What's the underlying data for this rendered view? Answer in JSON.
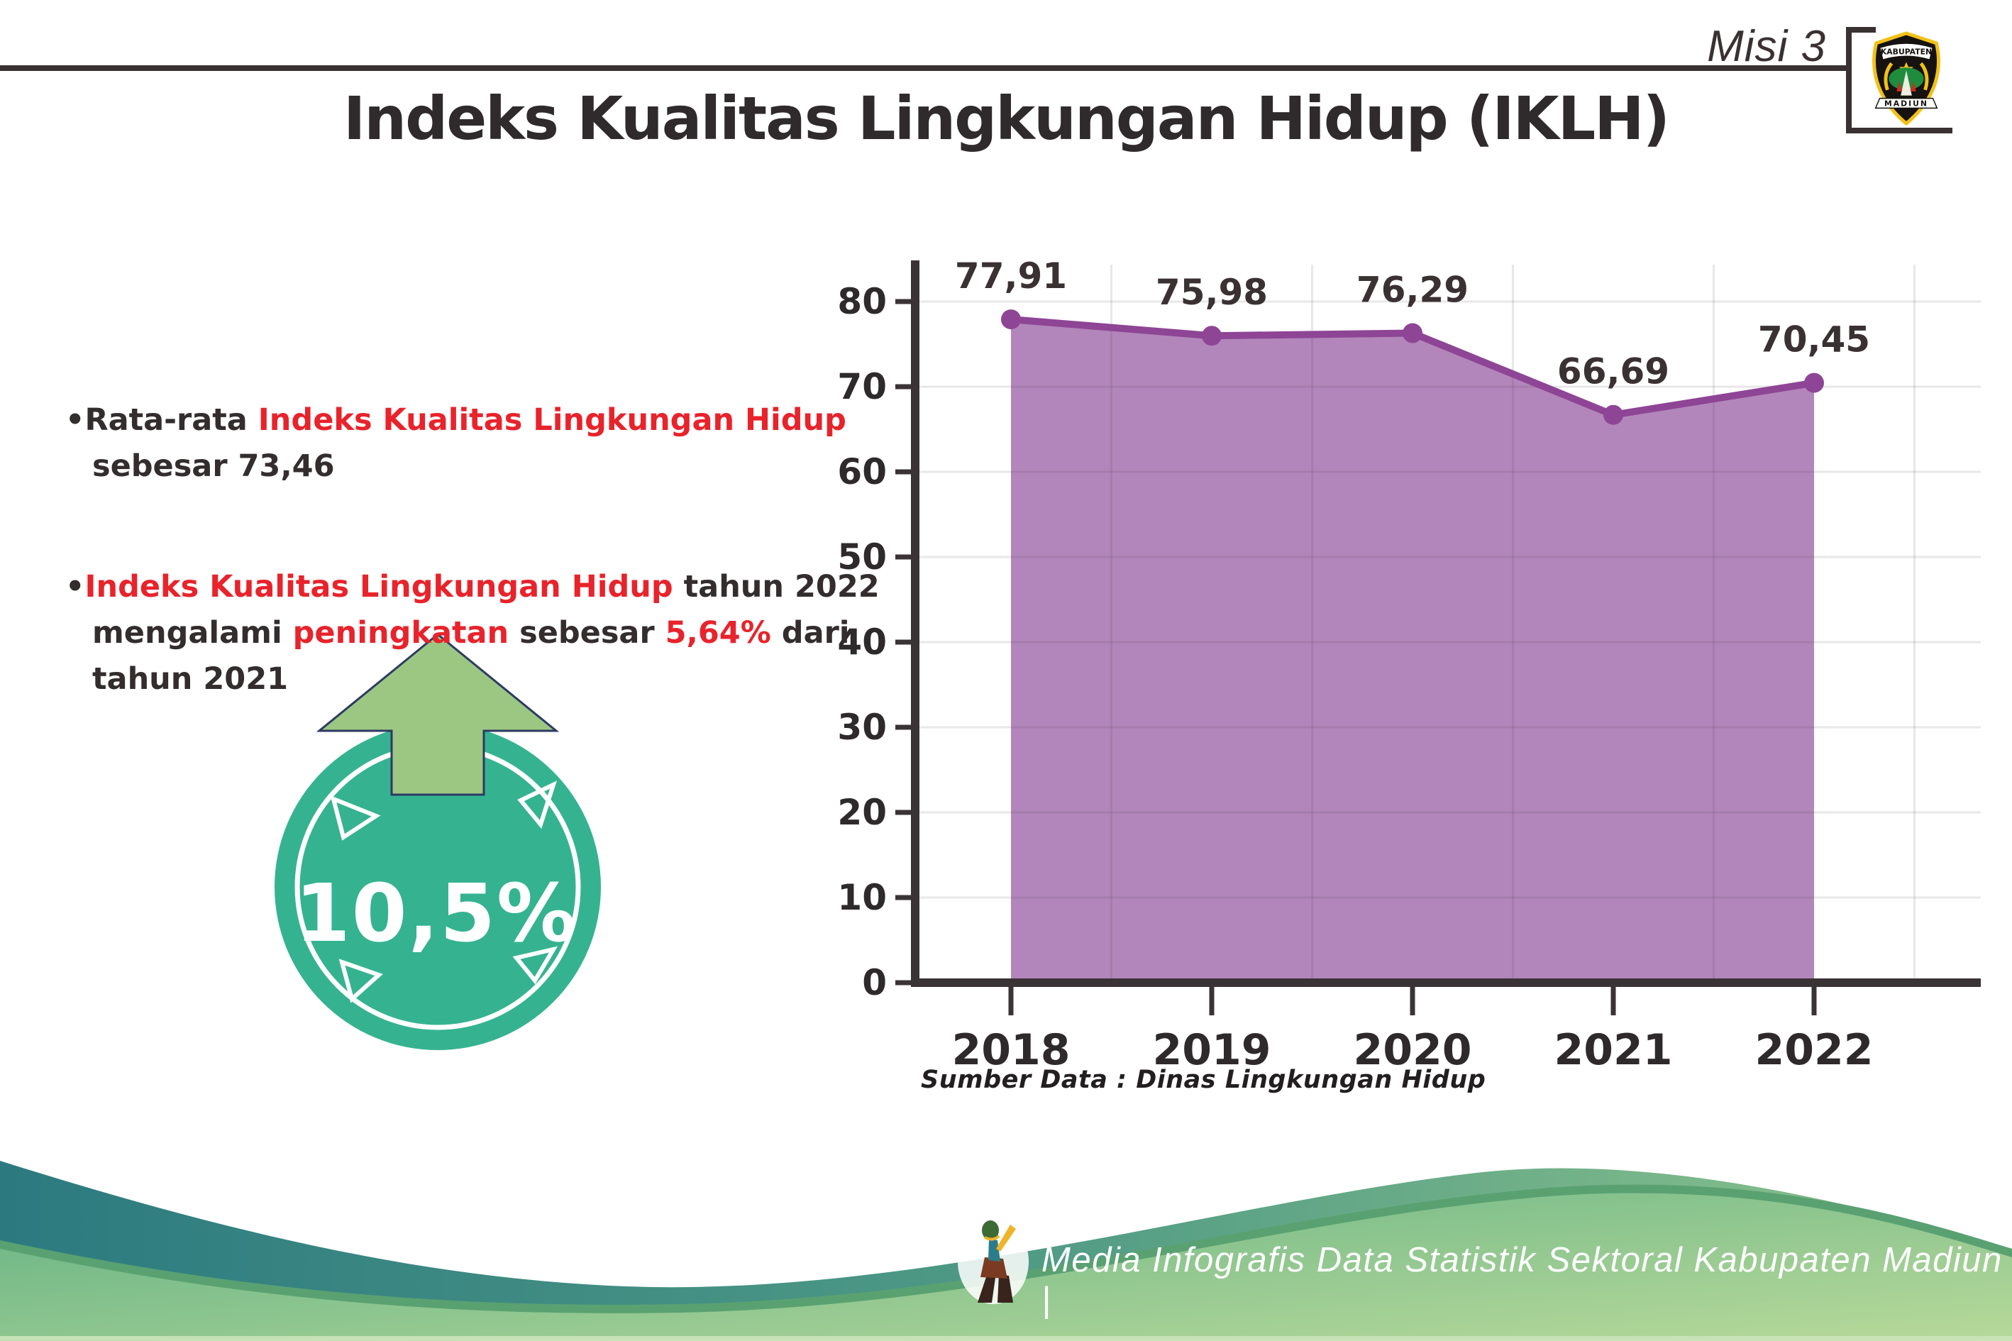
{
  "header": {
    "misi": "Misi 3",
    "logo": {
      "top": "KABUPATEN",
      "bottom": "MADIUN"
    }
  },
  "title": "Indeks Kualitas Lingkungan Hidup (IKLH)",
  "bullets": {
    "b1": {
      "marker": "•",
      "segments": [
        {
          "t": "Rata-rata ",
          "c": "dark"
        },
        {
          "t": "Indeks Kualitas Lingkungan Hidup",
          "c": "red"
        },
        {
          "br": true
        },
        {
          "t": "sebesar 73,46",
          "c": "dark"
        }
      ]
    },
    "b2": {
      "marker": "•",
      "segments": [
        {
          "t": "Indeks Kualitas Lingkungan Hidup",
          "c": "red"
        },
        {
          "t": " tahun 2022",
          "c": "dark"
        },
        {
          "br": true
        },
        {
          "t": "mengalami ",
          "c": "dark"
        },
        {
          "t": "peningkatan",
          "c": "red"
        },
        {
          "t": " sebesar ",
          "c": "dark"
        },
        {
          "t": "5,64%",
          "c": "red"
        },
        {
          "t": " dari",
          "c": "dark"
        },
        {
          "br": true
        },
        {
          "t": "tahun 2021",
          "c": "dark"
        }
      ]
    }
  },
  "badge": {
    "value": "10,5%",
    "circle_color": "#35b390",
    "arrow_color": "#9cc783",
    "arrow_outline": "#2d3a63"
  },
  "chart_data": {
    "type": "area",
    "categories": [
      "2018",
      "2019",
      "2020",
      "2021",
      "2022"
    ],
    "values": [
      77.91,
      75.98,
      76.29,
      66.69,
      70.45
    ],
    "labels": [
      "77,91",
      "75,98",
      "76,29",
      "66,69",
      "70,45"
    ],
    "yticks": [
      0,
      10,
      20,
      30,
      40,
      50,
      60,
      70,
      80
    ],
    "ylim": [
      0,
      80
    ],
    "grid": true,
    "legend": "none",
    "colors": {
      "area": "#b286ba",
      "line": "#8e4595",
      "axis": "#3a3335",
      "label": "#3a3132",
      "tick_label": "#2e2a2b",
      "grid": "rgba(70,60,70,0.12)"
    }
  },
  "source": "Sumber Data : Dinas Lingkungan Hidup",
  "footer": {
    "text": "Media Infografis Data Statistik Sektoral Kabupaten Madiun |",
    "wave_dark": "#2c7a80",
    "wave_light": "#8ec48c",
    "wave_front": "#64b284"
  }
}
